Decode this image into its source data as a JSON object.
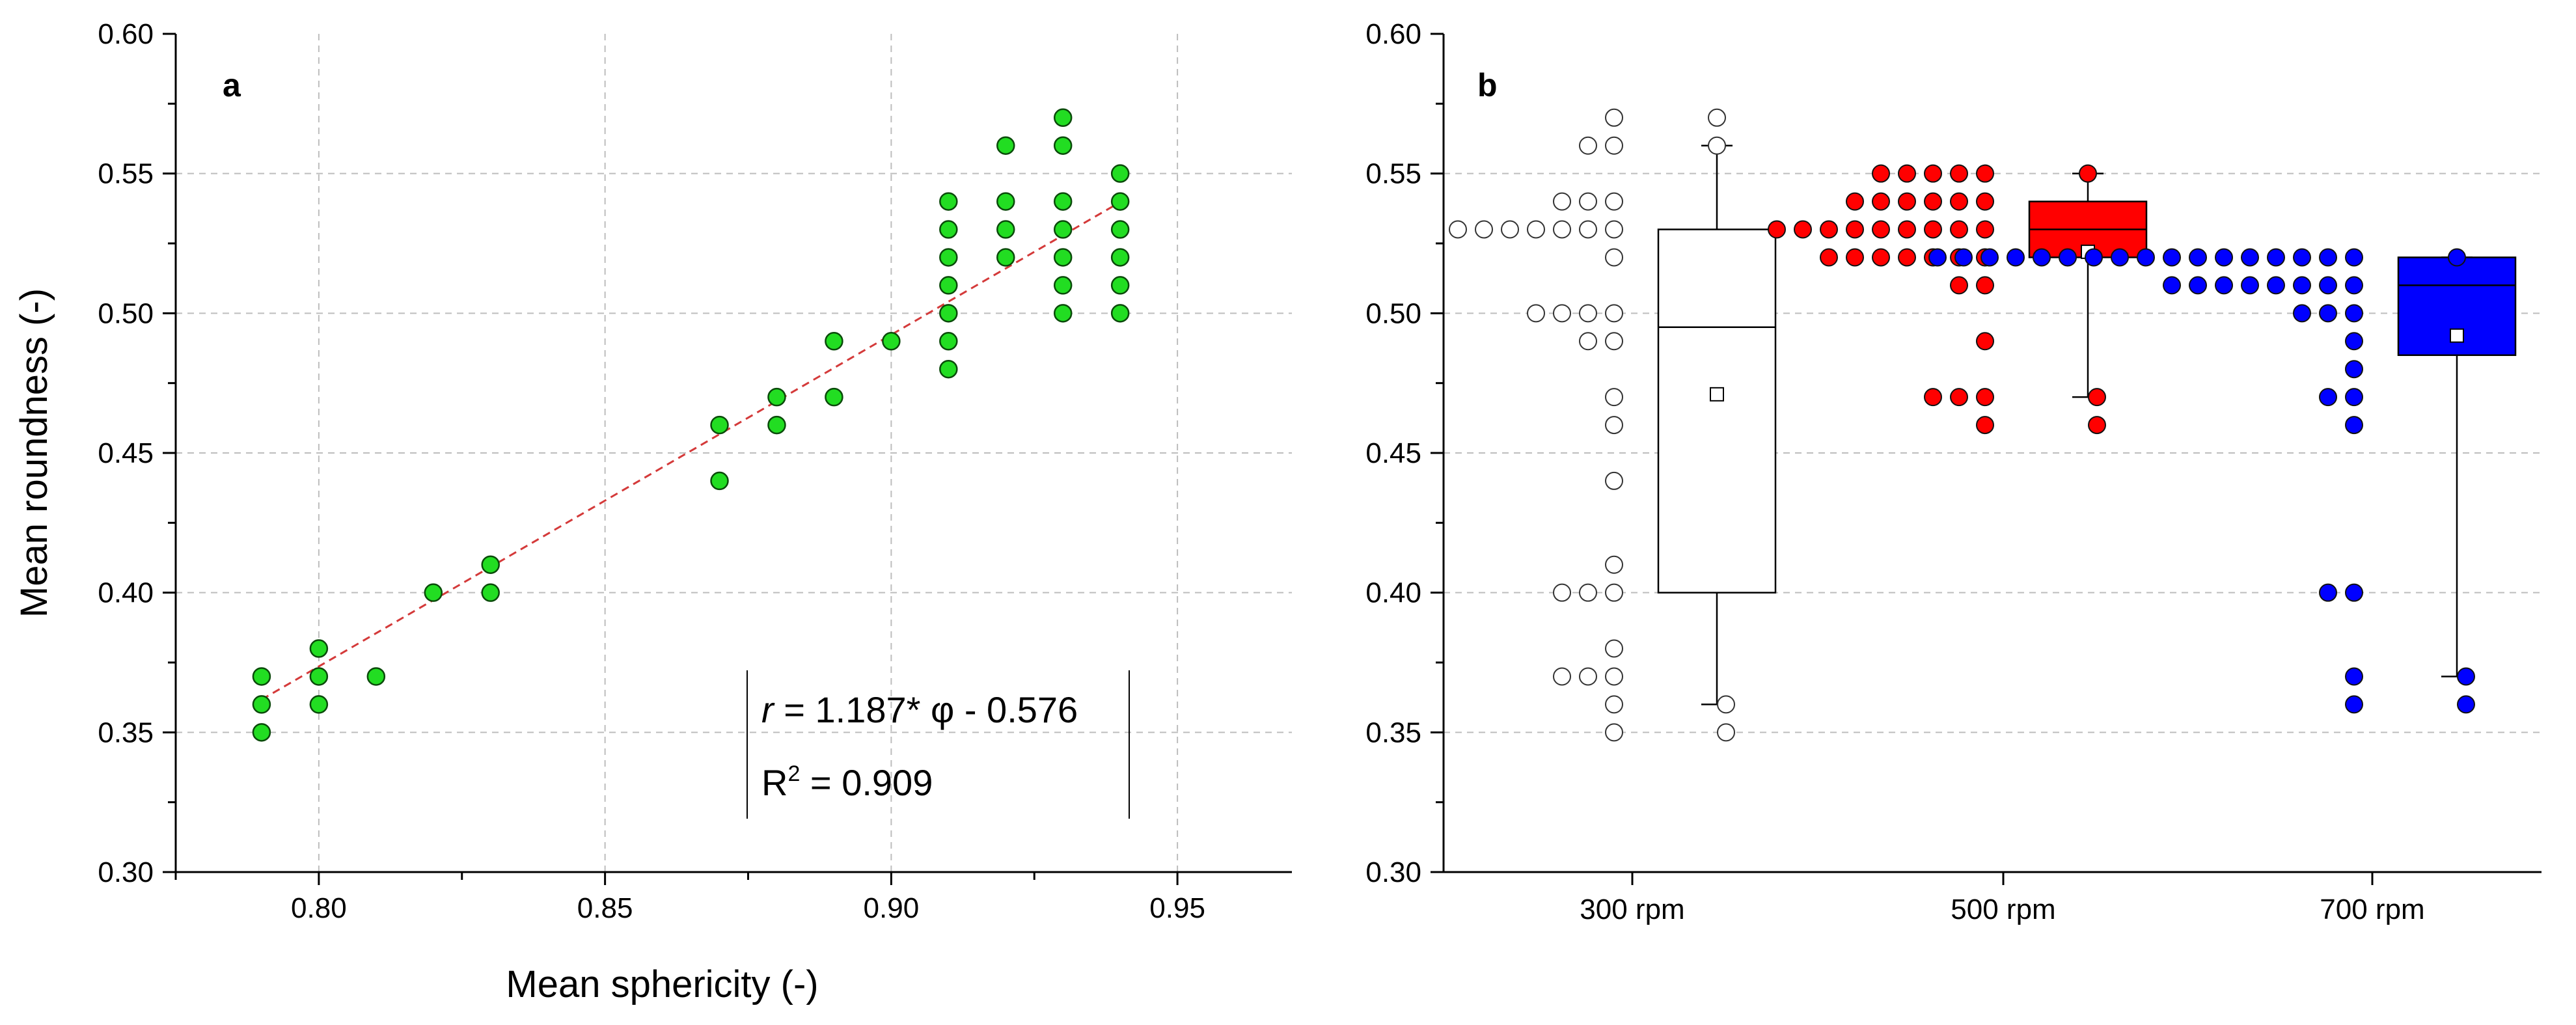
{
  "chart_data": [
    {
      "type": "scatter",
      "panel_label": "a",
      "xlabel": "Mean sphericity (-)",
      "ylabel": "Mean roundness (-)",
      "xlim": [
        0.775,
        0.97
      ],
      "ylim": [
        0.3,
        0.6
      ],
      "xticks": [
        "0.80",
        "0.85",
        "0.90",
        "0.95"
      ],
      "yticks": [
        "0.30",
        "0.35",
        "0.40",
        "0.45",
        "0.50",
        "0.55",
        "0.60"
      ],
      "grid": true,
      "marker_color": "#22dd22",
      "fit_color": "#d43a3a",
      "points": [
        [
          0.79,
          0.37
        ],
        [
          0.79,
          0.36
        ],
        [
          0.79,
          0.35
        ],
        [
          0.8,
          0.38
        ],
        [
          0.8,
          0.37
        ],
        [
          0.8,
          0.36
        ],
        [
          0.81,
          0.37
        ],
        [
          0.82,
          0.4
        ],
        [
          0.83,
          0.41
        ],
        [
          0.83,
          0.4
        ],
        [
          0.87,
          0.46
        ],
        [
          0.87,
          0.44
        ],
        [
          0.88,
          0.47
        ],
        [
          0.88,
          0.46
        ],
        [
          0.89,
          0.49
        ],
        [
          0.89,
          0.47
        ],
        [
          0.9,
          0.49
        ],
        [
          0.91,
          0.54
        ],
        [
          0.91,
          0.53
        ],
        [
          0.91,
          0.52
        ],
        [
          0.91,
          0.51
        ],
        [
          0.91,
          0.5
        ],
        [
          0.91,
          0.49
        ],
        [
          0.91,
          0.48
        ],
        [
          0.92,
          0.56
        ],
        [
          0.92,
          0.54
        ],
        [
          0.92,
          0.53
        ],
        [
          0.92,
          0.52
        ],
        [
          0.93,
          0.57
        ],
        [
          0.93,
          0.56
        ],
        [
          0.93,
          0.54
        ],
        [
          0.93,
          0.53
        ],
        [
          0.93,
          0.52
        ],
        [
          0.93,
          0.51
        ],
        [
          0.93,
          0.5
        ],
        [
          0.94,
          0.55
        ],
        [
          0.94,
          0.54
        ],
        [
          0.94,
          0.53
        ],
        [
          0.94,
          0.52
        ],
        [
          0.94,
          0.51
        ],
        [
          0.94,
          0.5
        ]
      ],
      "fit": {
        "slope": 1.187,
        "intercept": -0.576,
        "x_range": [
          0.79,
          0.94
        ]
      },
      "equation": {
        "r_symbol": "r",
        "body": " = 1.187* φ - 0.576",
        "r2_base": "R",
        "r2_sup": "2",
        "r2_value": " = 0.909"
      }
    },
    {
      "type": "box",
      "panel_label": "b",
      "ylim": [
        0.3,
        0.6
      ],
      "yticks": [
        "0.30",
        "0.35",
        "0.40",
        "0.45",
        "0.50",
        "0.55",
        "0.60"
      ],
      "grid": true,
      "categories": [
        "300 rpm",
        "500 rpm",
        "700 rpm"
      ],
      "groups": [
        {
          "name": "300 rpm",
          "color": "#ffffff",
          "point_style": "hollow",
          "points": [
            {
              "y": 0.57,
              "n": 1
            },
            {
              "y": 0.56,
              "n": 2
            },
            {
              "y": 0.54,
              "n": 3
            },
            {
              "y": 0.53,
              "n": 7
            },
            {
              "y": 0.52,
              "n": 1
            },
            {
              "y": 0.5,
              "n": 4
            },
            {
              "y": 0.49,
              "n": 2
            },
            {
              "y": 0.47,
              "n": 1
            },
            {
              "y": 0.46,
              "n": 1
            },
            {
              "y": 0.44,
              "n": 1
            },
            {
              "y": 0.41,
              "n": 1
            },
            {
              "y": 0.4,
              "n": 3
            },
            {
              "y": 0.38,
              "n": 1
            },
            {
              "y": 0.37,
              "n": 3
            },
            {
              "y": 0.36,
              "n": 1
            },
            {
              "y": 0.35,
              "n": 1
            }
          ],
          "box": {
            "q1": 0.4,
            "median": 0.495,
            "q3": 0.53,
            "whisker_low": 0.36,
            "whisker_high": 0.56,
            "mean": 0.471
          },
          "outliers": [
            0.57,
            0.56,
            0.36,
            0.35
          ]
        },
        {
          "name": "500 rpm",
          "color": "#ff0000",
          "point_style": "filled",
          "points": [
            {
              "y": 0.55,
              "n": 5
            },
            {
              "y": 0.54,
              "n": 6
            },
            {
              "y": 0.53,
              "n": 9
            },
            {
              "y": 0.52,
              "n": 7
            },
            {
              "y": 0.51,
              "n": 2
            },
            {
              "y": 0.49,
              "n": 1
            },
            {
              "y": 0.47,
              "n": 3
            },
            {
              "y": 0.46,
              "n": 1
            }
          ],
          "box": {
            "q1": 0.52,
            "median": 0.53,
            "q3": 0.54,
            "whisker_low": 0.47,
            "whisker_high": 0.55,
            "mean": 0.522
          },
          "outliers": [
            0.55,
            0.47,
            0.46
          ]
        },
        {
          "name": "700 rpm",
          "color": "#0000ff",
          "point_style": "filled",
          "points": [
            {
              "y": 0.52,
              "n": 17
            },
            {
              "y": 0.51,
              "n": 8
            },
            {
              "y": 0.5,
              "n": 3
            },
            {
              "y": 0.49,
              "n": 1
            },
            {
              "y": 0.48,
              "n": 1
            },
            {
              "y": 0.47,
              "n": 2
            },
            {
              "y": 0.46,
              "n": 1
            },
            {
              "y": 0.4,
              "n": 2
            },
            {
              "y": 0.37,
              "n": 1
            },
            {
              "y": 0.36,
              "n": 1
            }
          ],
          "box": {
            "q1": 0.485,
            "median": 0.51,
            "q3": 0.52,
            "whisker_low": 0.37,
            "whisker_high": 0.52,
            "mean": 0.492
          },
          "outliers": [
            0.52,
            0.37,
            0.36
          ]
        }
      ]
    }
  ]
}
